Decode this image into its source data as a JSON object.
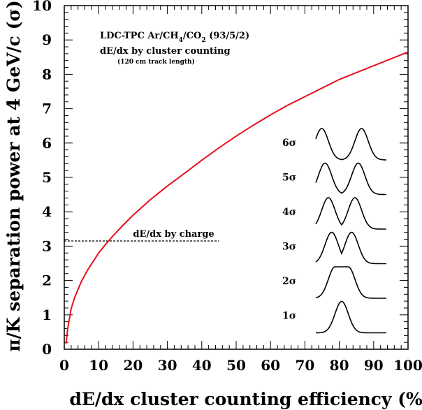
{
  "chart_data": {
    "type": "line",
    "xlabel": "dE/dx cluster counting efficiency (%)",
    "ylabel": "π/K separation power at 4 GeV/c (σ)",
    "xlim": [
      0,
      100
    ],
    "ylim": [
      0,
      10
    ],
    "x_ticks": [
      "0",
      "10",
      "20",
      "30",
      "40",
      "50",
      "60",
      "70",
      "80",
      "90",
      "100"
    ],
    "y_ticks": [
      "0",
      "1",
      "2",
      "3",
      "4",
      "5",
      "6",
      "7",
      "8",
      "9",
      "10"
    ],
    "annotation": {
      "line1_prefix": "LDC-TPC Ar/CH",
      "line1_sub1": "4",
      "line1_mid": "/CO",
      "line1_sub2": "2",
      "line1_suffix": " (93/5/2)",
      "line2": "dE/dx by cluster counting",
      "line3": "(120 cm track length)"
    },
    "series": [
      {
        "name": "cluster counting",
        "color": "#e8111b",
        "x": [
          0.5,
          1,
          2,
          3,
          5,
          7,
          10,
          12,
          14,
          17,
          20,
          25,
          30,
          35,
          40,
          45,
          50,
          55,
          60,
          65,
          70,
          75,
          80,
          85,
          90,
          95,
          100
        ],
        "y": [
          0.16,
          0.6,
          1.18,
          1.5,
          1.98,
          2.34,
          2.8,
          3.05,
          3.28,
          3.6,
          3.9,
          4.35,
          4.75,
          5.12,
          5.5,
          5.86,
          6.2,
          6.52,
          6.82,
          7.1,
          7.35,
          7.6,
          7.85,
          8.05,
          8.25,
          8.45,
          8.65
        ]
      }
    ],
    "reference_line": {
      "label": "dE/dx by charge",
      "y": 3.15,
      "x_start": 0,
      "x_end": 45,
      "style": "dashed",
      "color": "#000000"
    },
    "separation_illustrations": [
      {
        "label": "6σ",
        "sigma": 6
      },
      {
        "label": "5σ",
        "sigma": 5
      },
      {
        "label": "4σ",
        "sigma": 4
      },
      {
        "label": "3σ",
        "sigma": 3
      },
      {
        "label": "2σ",
        "sigma": 2
      },
      {
        "label": "1σ",
        "sigma": 1
      }
    ]
  }
}
